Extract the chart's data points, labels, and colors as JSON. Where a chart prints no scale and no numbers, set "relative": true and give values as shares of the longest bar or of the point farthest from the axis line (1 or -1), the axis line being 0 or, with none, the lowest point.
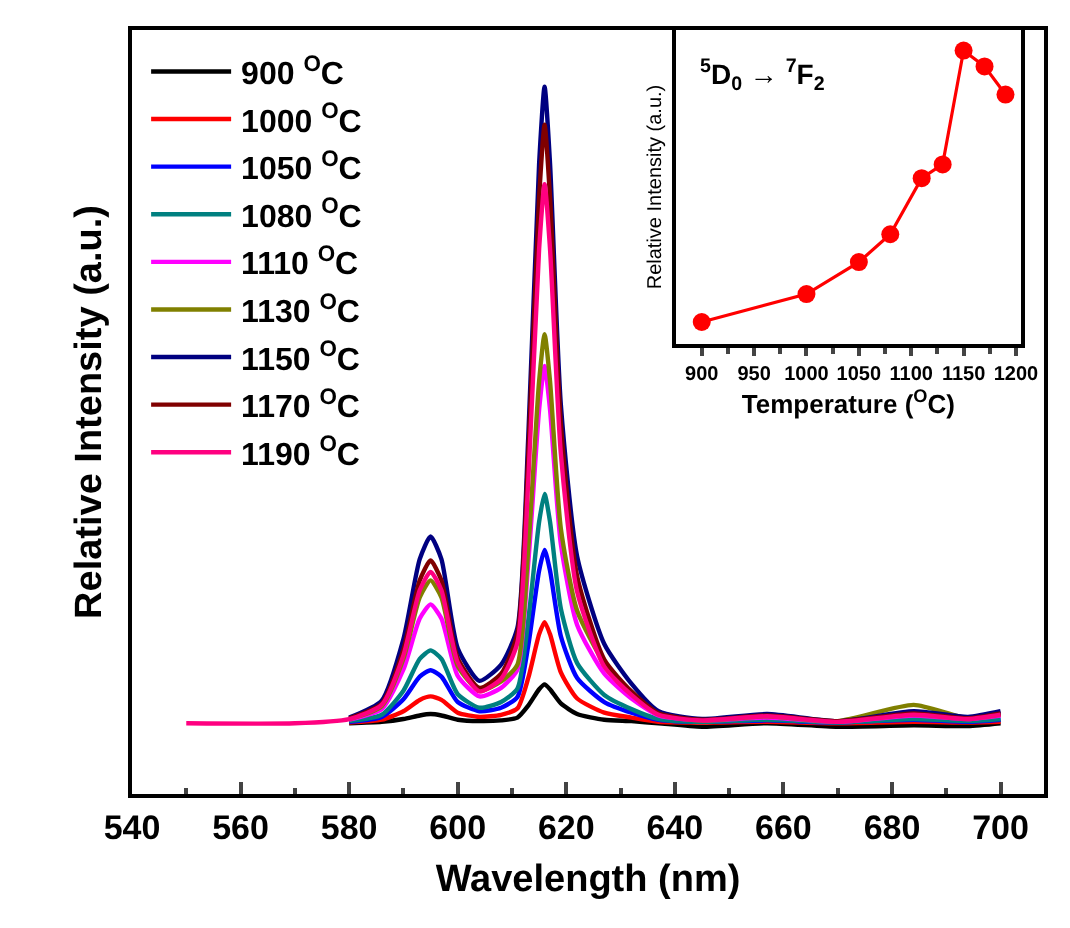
{
  "chart_data": [
    {
      "type": "line",
      "xlabel": "Wavelength (nm)",
      "ylabel": "Relative Intensity (a.u.)",
      "relative": true,
      "tick_labels": "x",
      "legend": "top left",
      "marker": "none",
      "line_style": "solid",
      "xlim": [
        540,
        708
      ],
      "xticks": [
        540,
        560,
        580,
        600,
        620,
        640,
        660,
        680,
        700
      ],
      "x": [
        550,
        570,
        580,
        586,
        590,
        593,
        595,
        597,
        600,
        604,
        608,
        611,
        613,
        615,
        616,
        617,
        619,
        622,
        627,
        632,
        637,
        645,
        657,
        670,
        684,
        694,
        700
      ],
      "series": [
        {
          "name": "900 $^{O}$C",
          "color": "#000000",
          "values": [
            null,
            null,
            0.1,
            0.102,
            0.106,
            0.111,
            0.113,
            0.111,
            0.105,
            0.103,
            0.104,
            0.108,
            0.125,
            0.148,
            0.155,
            0.148,
            0.128,
            0.113,
            0.105,
            0.103,
            0.1,
            0.095,
            0.1,
            0.095,
            0.097,
            0.096,
            0.1
          ]
        },
        {
          "name": "1000 $^{O}$C",
          "color": "#ff0000",
          "values": [
            null,
            null,
            0.101,
            0.105,
            0.117,
            0.133,
            0.138,
            0.133,
            0.115,
            0.109,
            0.112,
            0.121,
            0.164,
            0.226,
            0.243,
            0.226,
            0.172,
            0.135,
            0.115,
            0.108,
            0.102,
            0.101,
            0.102,
            0.1,
            0.102,
            0.101,
            0.102
          ]
        },
        {
          "name": "1050 $^{O}$C",
          "color": "#0000ff",
          "values": [
            null,
            null,
            0.102,
            0.109,
            0.134,
            0.166,
            0.175,
            0.166,
            0.13,
            0.117,
            0.122,
            0.137,
            0.21,
            0.316,
            0.345,
            0.316,
            0.223,
            0.164,
            0.13,
            0.115,
            0.105,
            0.102,
            0.104,
            0.101,
            0.105,
            0.102,
            0.105
          ]
        },
        {
          "name": "1080 $^{O}$C",
          "color": "#008080",
          "values": [
            null,
            null,
            0.103,
            0.112,
            0.146,
            0.191,
            0.203,
            0.191,
            0.141,
            0.122,
            0.13,
            0.149,
            0.246,
            0.385,
            0.424,
            0.385,
            0.262,
            0.185,
            0.14,
            0.12,
            0.106,
            0.102,
            0.105,
            0.101,
            0.106,
            0.103,
            0.106
          ]
        },
        {
          "name": "1110 $^{O}$C",
          "color": "#ff00ff",
          "values": [
            null,
            null,
            0.105,
            0.12,
            0.176,
            0.248,
            0.268,
            0.248,
            0.167,
            0.138,
            0.15,
            0.176,
            0.327,
            0.544,
            0.605,
            0.544,
            0.353,
            0.239,
            0.17,
            0.135,
            0.111,
            0.104,
            0.108,
            0.102,
            0.111,
            0.106,
            0.111
          ]
        },
        {
          "name": "1130 $^{O}$C",
          "color": "#808000",
          "values": [
            null,
            null,
            0.106,
            0.124,
            0.191,
            0.278,
            0.302,
            0.278,
            0.181,
            0.146,
            0.159,
            0.183,
            0.348,
            0.584,
            0.65,
            0.584,
            0.375,
            0.259,
            0.185,
            0.143,
            0.113,
            0.104,
            0.11,
            0.103,
            0.126,
            0.107,
            0.113
          ]
        },
        {
          "name": "1150 $^{O}$C",
          "color": "#000080",
          "values": [
            null,
            null,
            0.108,
            0.132,
            0.219,
            0.332,
            0.364,
            0.332,
            0.206,
            0.16,
            0.183,
            0.235,
            0.505,
            0.892,
            1.0,
            0.892,
            0.55,
            0.336,
            0.212,
            0.156,
            0.117,
            0.106,
            0.113,
            0.103,
            0.117,
            0.109,
            0.117
          ]
        },
        {
          "name": "1170 $^{O}$C",
          "color": "#800000",
          "values": [
            null,
            null,
            0.107,
            0.128,
            0.204,
            0.302,
            0.33,
            0.302,
            0.192,
            0.15,
            0.17,
            0.227,
            0.481,
            0.844,
            0.946,
            0.844,
            0.523,
            0.308,
            0.19,
            0.145,
            0.114,
            0.105,
            0.111,
            0.103,
            0.114,
            0.107,
            0.114
          ]
        },
        {
          "name": "1190 $^{O}$C",
          "color": "#ff0080",
          "values": [
            0.1,
            0.1,
            0.106,
            0.126,
            0.196,
            0.288,
            0.314,
            0.288,
            0.186,
            0.145,
            0.163,
            0.214,
            0.443,
            0.771,
            0.862,
            0.771,
            0.481,
            0.286,
            0.18,
            0.14,
            0.112,
            0.104,
            0.11,
            0.102,
            0.112,
            0.106,
            0.112
          ]
        }
      ]
    },
    {
      "type": "line",
      "xlabel": "Temperature ($^{O}$C)",
      "ylabel": "Relative Intensity (a.u.)",
      "relative": true,
      "tick_labels": "x",
      "marker": "circle",
      "line_style": "solid",
      "xlim": [
        875,
        1205
      ],
      "xticks": [
        900,
        950,
        1000,
        1050,
        1100,
        1150,
        1200
      ],
      "annotations": [
        "$^{5}$D$_{0}$ → $^{7}$F$_{2}$"
      ],
      "x": [
        900,
        1000,
        1050,
        1080,
        1110,
        1130,
        1150,
        1170,
        1190
      ],
      "series": [
        {
          "color": "#ff0000",
          "values": [
            0.075,
            0.17,
            0.279,
            0.374,
            0.565,
            0.612,
            1.0,
            0.946,
            0.85
          ]
        }
      ]
    }
  ]
}
